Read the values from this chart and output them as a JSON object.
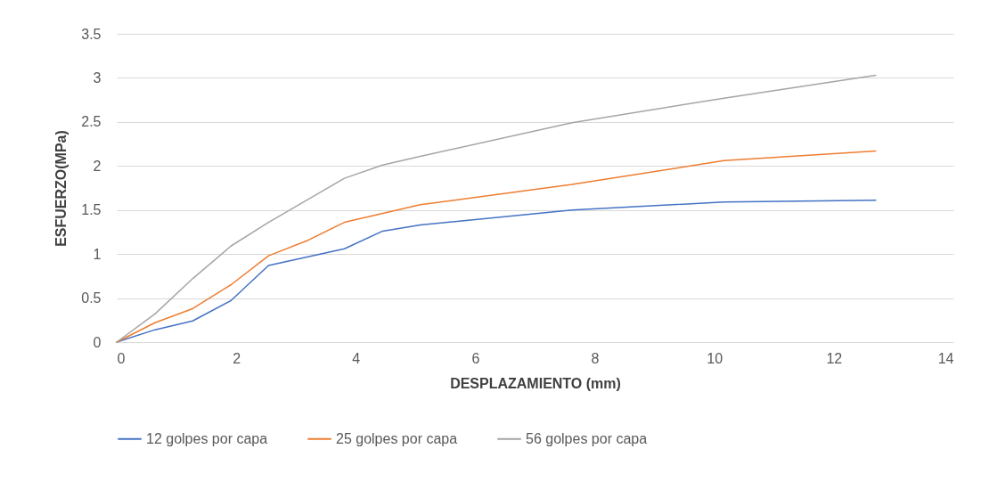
{
  "chart_data": {
    "type": "line",
    "xlabel": "DESPLAZAMIENTO (mm)",
    "ylabel": "ESFUERZO(MPa)",
    "xlim": [
      0,
      14
    ],
    "xticks": [
      0,
      2,
      4,
      6,
      8,
      10,
      12,
      14
    ],
    "ylim": [
      0,
      3.5
    ],
    "yticks": [
      0,
      0.5,
      1,
      1.5,
      2,
      2.5,
      3,
      3.5
    ],
    "grid": "y",
    "legend": "bottom",
    "marker": "none",
    "line_style": "solid",
    "series": [
      {
        "name": "12 golpes por capa",
        "color": "#4472c4",
        "x": [
          0,
          0.64,
          1.27,
          1.91,
          2.54,
          3.81,
          4.45,
          5.08,
          7.62,
          10.16,
          12.7
        ],
        "values": [
          0,
          0.14,
          0.24,
          0.47,
          0.87,
          1.06,
          1.26,
          1.33,
          1.5,
          1.59,
          1.61
        ]
      },
      {
        "name": "25 golpes por capa",
        "color": "#ed7d31",
        "x": [
          0,
          0.64,
          1.27,
          1.91,
          2.54,
          3.18,
          3.81,
          5.08,
          7.62,
          10.16,
          12.7
        ],
        "values": [
          0,
          0.22,
          0.38,
          0.65,
          0.98,
          1.15,
          1.36,
          1.56,
          1.79,
          2.06,
          2.17
        ]
      },
      {
        "name": "56 golpes por capa",
        "color": "#a5a5a5",
        "x": [
          0,
          0.64,
          1.27,
          1.91,
          2.54,
          3.81,
          4.45,
          5.08,
          7.62,
          10.16,
          12.7
        ],
        "values": [
          0,
          0.32,
          0.72,
          1.09,
          1.36,
          1.86,
          2.01,
          2.11,
          2.49,
          2.77,
          3.03
        ]
      }
    ]
  }
}
